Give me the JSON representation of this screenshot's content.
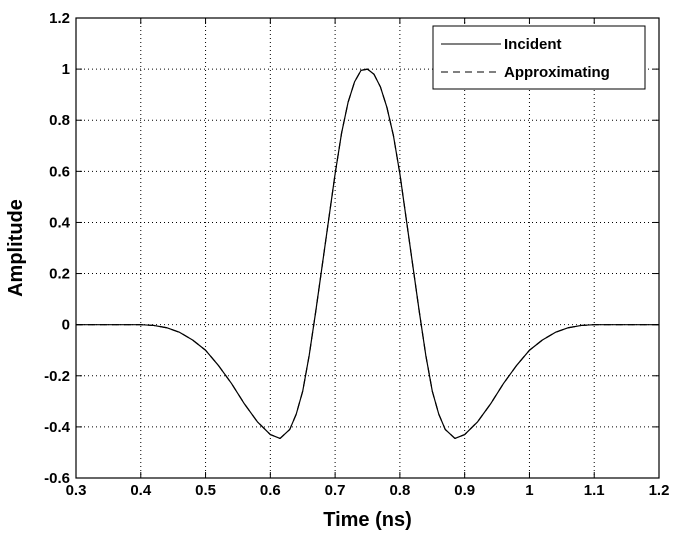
{
  "chart_data": {
    "type": "line",
    "title": "",
    "xlabel": "Time  (ns)",
    "ylabel": "Amplitude",
    "xlim": [
      0.3,
      1.2
    ],
    "ylim": [
      -0.6,
      1.2
    ],
    "xticks": [
      0.3,
      0.4,
      0.5,
      0.6,
      0.7,
      0.8,
      0.9,
      1,
      1.1,
      1.2
    ],
    "yticks": [
      -0.6,
      -0.4,
      -0.2,
      0,
      0.2,
      0.4,
      0.6,
      0.8,
      1,
      1.2
    ],
    "xtick_labels": [
      "0.3",
      "0.4",
      "0.5",
      "0.6",
      "0.7",
      "0.8",
      "0.9",
      "1",
      "1.1",
      "1.2"
    ],
    "ytick_labels": [
      "-0.6",
      "-0.4",
      "-0.2",
      "0",
      "0.2",
      "0.4",
      "0.6",
      "0.8",
      "1",
      "1.2"
    ],
    "grid": true,
    "legend_position": "top-right",
    "series": [
      {
        "name": "Incident",
        "line_style": "solid",
        "color": "#000000",
        "x": [
          0.3,
          0.4,
          0.42,
          0.44,
          0.46,
          0.48,
          0.5,
          0.52,
          0.54,
          0.56,
          0.58,
          0.6,
          0.615,
          0.63,
          0.64,
          0.65,
          0.66,
          0.67,
          0.68,
          0.69,
          0.7,
          0.71,
          0.72,
          0.73,
          0.74,
          0.75,
          0.76,
          0.77,
          0.78,
          0.79,
          0.8,
          0.81,
          0.82,
          0.83,
          0.84,
          0.85,
          0.86,
          0.87,
          0.885,
          0.9,
          0.92,
          0.94,
          0.96,
          0.98,
          1.0,
          1.02,
          1.04,
          1.06,
          1.08,
          1.1,
          1.2
        ],
        "y": [
          0.0,
          0.0,
          -0.003,
          -0.012,
          -0.03,
          -0.06,
          -0.1,
          -0.16,
          -0.23,
          -0.31,
          -0.38,
          -0.43,
          -0.445,
          -0.41,
          -0.35,
          -0.26,
          -0.12,
          0.05,
          0.23,
          0.41,
          0.59,
          0.75,
          0.87,
          0.95,
          0.995,
          1.0,
          0.98,
          0.93,
          0.85,
          0.74,
          0.59,
          0.41,
          0.23,
          0.05,
          -0.12,
          -0.26,
          -0.35,
          -0.41,
          -0.445,
          -0.43,
          -0.38,
          -0.31,
          -0.23,
          -0.16,
          -0.1,
          -0.06,
          -0.03,
          -0.012,
          -0.003,
          0.0,
          0.0
        ]
      },
      {
        "name": "Approximating",
        "line_style": "dashed",
        "color": "#000000",
        "x": [
          0.3,
          0.4,
          0.42,
          0.44,
          0.46,
          0.48,
          0.5,
          0.52,
          0.54,
          0.56,
          0.58,
          0.6,
          0.615,
          0.63,
          0.64,
          0.65,
          0.66,
          0.67,
          0.68,
          0.69,
          0.7,
          0.71,
          0.72,
          0.73,
          0.74,
          0.75,
          0.76,
          0.77,
          0.78,
          0.79,
          0.8,
          0.81,
          0.82,
          0.83,
          0.84,
          0.85,
          0.86,
          0.87,
          0.885,
          0.9,
          0.92,
          0.94,
          0.96,
          0.98,
          1.0,
          1.02,
          1.04,
          1.06,
          1.08,
          1.1,
          1.2
        ],
        "y": [
          0.0,
          0.0,
          -0.003,
          -0.012,
          -0.03,
          -0.06,
          -0.1,
          -0.16,
          -0.23,
          -0.31,
          -0.38,
          -0.43,
          -0.445,
          -0.41,
          -0.35,
          -0.26,
          -0.12,
          0.05,
          0.23,
          0.41,
          0.59,
          0.75,
          0.87,
          0.95,
          0.995,
          1.0,
          0.98,
          0.93,
          0.85,
          0.74,
          0.59,
          0.41,
          0.23,
          0.05,
          -0.12,
          -0.26,
          -0.35,
          -0.41,
          -0.445,
          -0.43,
          -0.38,
          -0.31,
          -0.23,
          -0.16,
          -0.1,
          -0.06,
          -0.03,
          -0.012,
          -0.003,
          0.0,
          0.0
        ]
      }
    ]
  }
}
